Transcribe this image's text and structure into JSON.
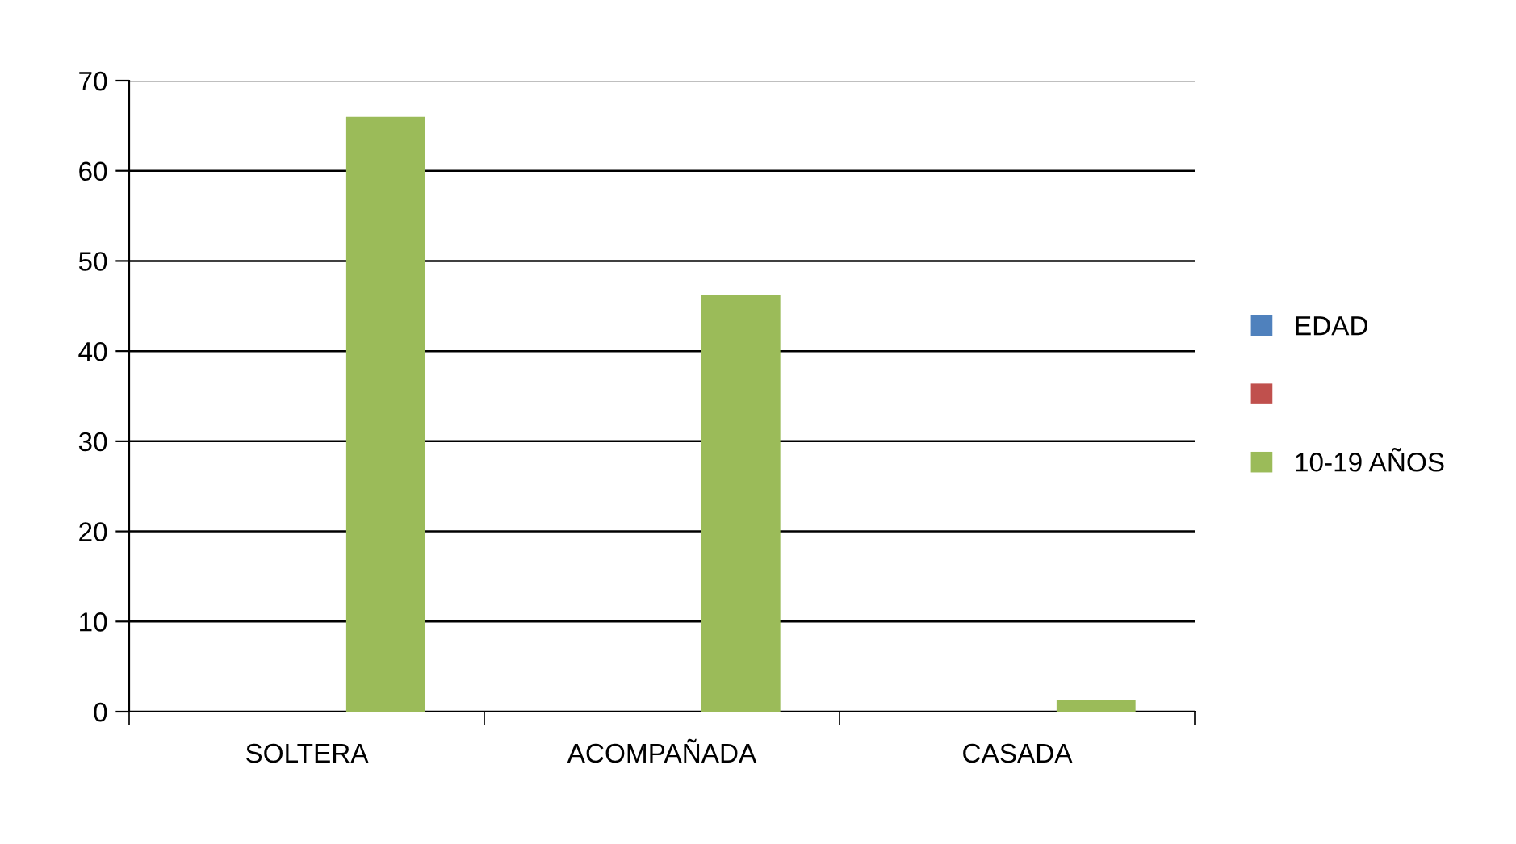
{
  "chart_data": {
    "type": "bar",
    "categories": [
      "SOLTERA",
      "ACOMPAÑADA",
      "CASADA"
    ],
    "series": [
      {
        "name": "EDAD",
        "color": "#4f81bd",
        "values": [
          null,
          null,
          null
        ]
      },
      {
        "color": "#c0504d",
        "values": [
          null,
          null,
          null
        ]
      },
      {
        "name": "10-19 AÑOS",
        "color": "#9bbb59",
        "values": [
          66,
          46.2,
          1.3
        ]
      }
    ],
    "ylim": [
      0,
      70
    ],
    "yticks": [
      0,
      10,
      20,
      30,
      40,
      50,
      60,
      70
    ],
    "grid": "y",
    "legend": "right"
  }
}
